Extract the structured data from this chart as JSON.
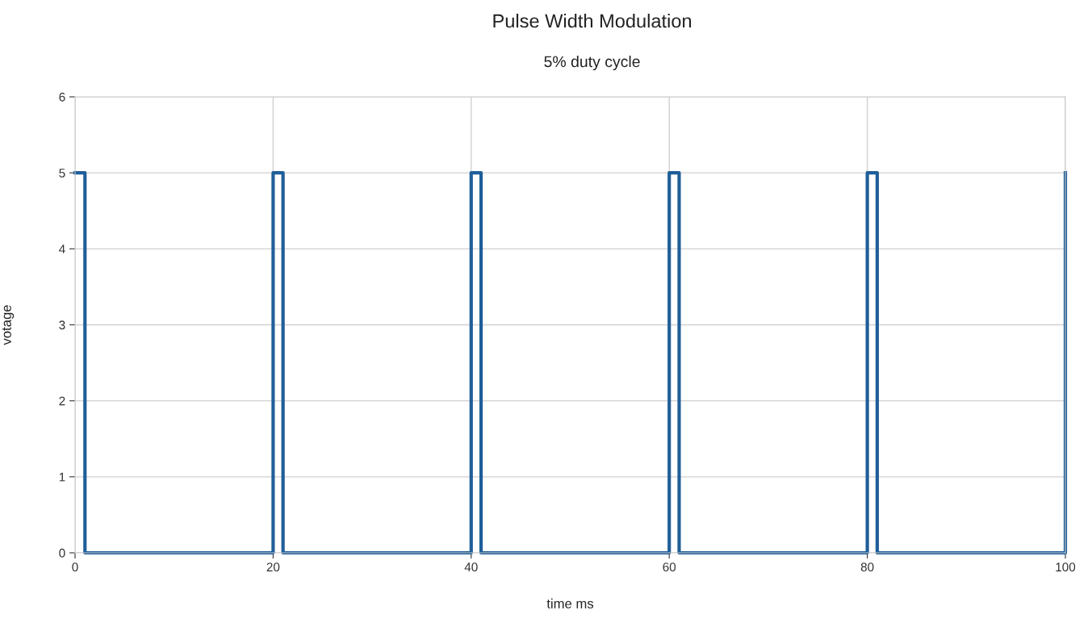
{
  "chart_data": {
    "type": "step",
    "title": "Pulse Width Modulation",
    "subtitle": "5% duty cycle",
    "xlabel": "time ms",
    "ylabel": "votage",
    "x": [
      0,
      1,
      20,
      21,
      40,
      41,
      60,
      61,
      80,
      81,
      100
    ],
    "series": [
      {
        "color": "#1f5e99",
        "values": [
          5,
          0,
          5,
          0,
          5,
          0,
          5,
          0,
          5,
          0,
          5
        ]
      }
    ],
    "xlim": [
      0,
      100
    ],
    "xticks": [
      0,
      20,
      40,
      60,
      80,
      100
    ],
    "ylim": [
      0,
      6
    ],
    "yticks": [
      0,
      1,
      2,
      3,
      4,
      5,
      6
    ],
    "grid": true,
    "marker": "none",
    "line_style": "solid"
  }
}
